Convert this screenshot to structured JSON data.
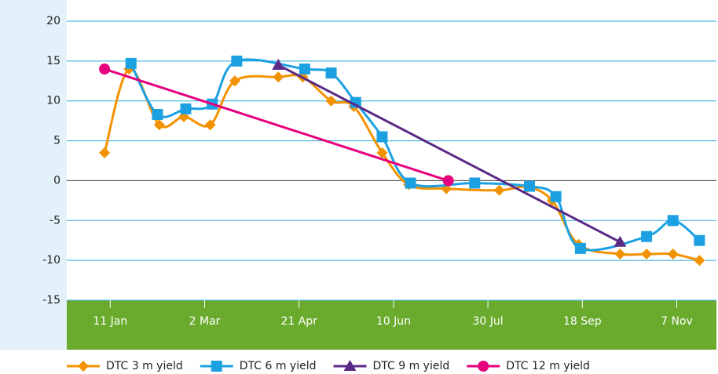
{
  "chart_data": {
    "type": "line",
    "xlim": [
      -12,
      332
    ],
    "xticks": [
      {
        "value": 11,
        "label": "11 Jan"
      },
      {
        "value": 61,
        "label": "2 Mar"
      },
      {
        "value": 111,
        "label": "21 Apr"
      },
      {
        "value": 161,
        "label": "10 Jun"
      },
      {
        "value": 211,
        "label": "30 Jul"
      },
      {
        "value": 261,
        "label": "18 Sep"
      },
      {
        "value": 311,
        "label": "7 Nov"
      }
    ],
    "ylim": [
      -15,
      20
    ],
    "yticks": [
      -15,
      -10,
      -5,
      0,
      5,
      10,
      15,
      20
    ],
    "grid": true,
    "legend": "bottom",
    "series": [
      {
        "name": "DTC 3 m yield",
        "color": "#f39200",
        "marker": "diamond",
        "smooth": true,
        "x": [
          8,
          21,
          37,
          50,
          64,
          77,
          100,
          113,
          128,
          140,
          155,
          169,
          189,
          217,
          232,
          245,
          259,
          281,
          295,
          309,
          323
        ],
        "values": [
          3.5,
          14,
          7,
          8,
          7,
          12.5,
          13,
          13,
          10,
          9.3,
          3.5,
          -0.5,
          -1,
          -1.2,
          -0.8,
          -2.5,
          -8,
          -9.2,
          -9.2,
          -9.2,
          -10
        ]
      },
      {
        "name": "DTC 6 m yield",
        "color": "#1ba1e2",
        "marker": "square",
        "smooth": true,
        "x": [
          22,
          36,
          51,
          65,
          78,
          114,
          128,
          141,
          155,
          170,
          204,
          233,
          247,
          260,
          295,
          309,
          323
        ],
        "values": [
          14.7,
          8.3,
          9,
          9.6,
          15,
          14,
          13.5,
          9.8,
          5.5,
          -0.3,
          -0.3,
          -0.7,
          -2,
          -8.5,
          -7,
          -5,
          -7.5
        ]
      },
      {
        "name": "DTC 9 m yield",
        "color": "#5b2a86",
        "marker": "triangle",
        "smooth": false,
        "x": [
          100,
          281
        ],
        "values": [
          14.5,
          -7.7
        ]
      },
      {
        "name": "DTC 12 m yield",
        "color": "#e6007e",
        "marker": "circle",
        "smooth": false,
        "x": [
          8,
          190
        ],
        "values": [
          14,
          0
        ]
      }
    ]
  }
}
